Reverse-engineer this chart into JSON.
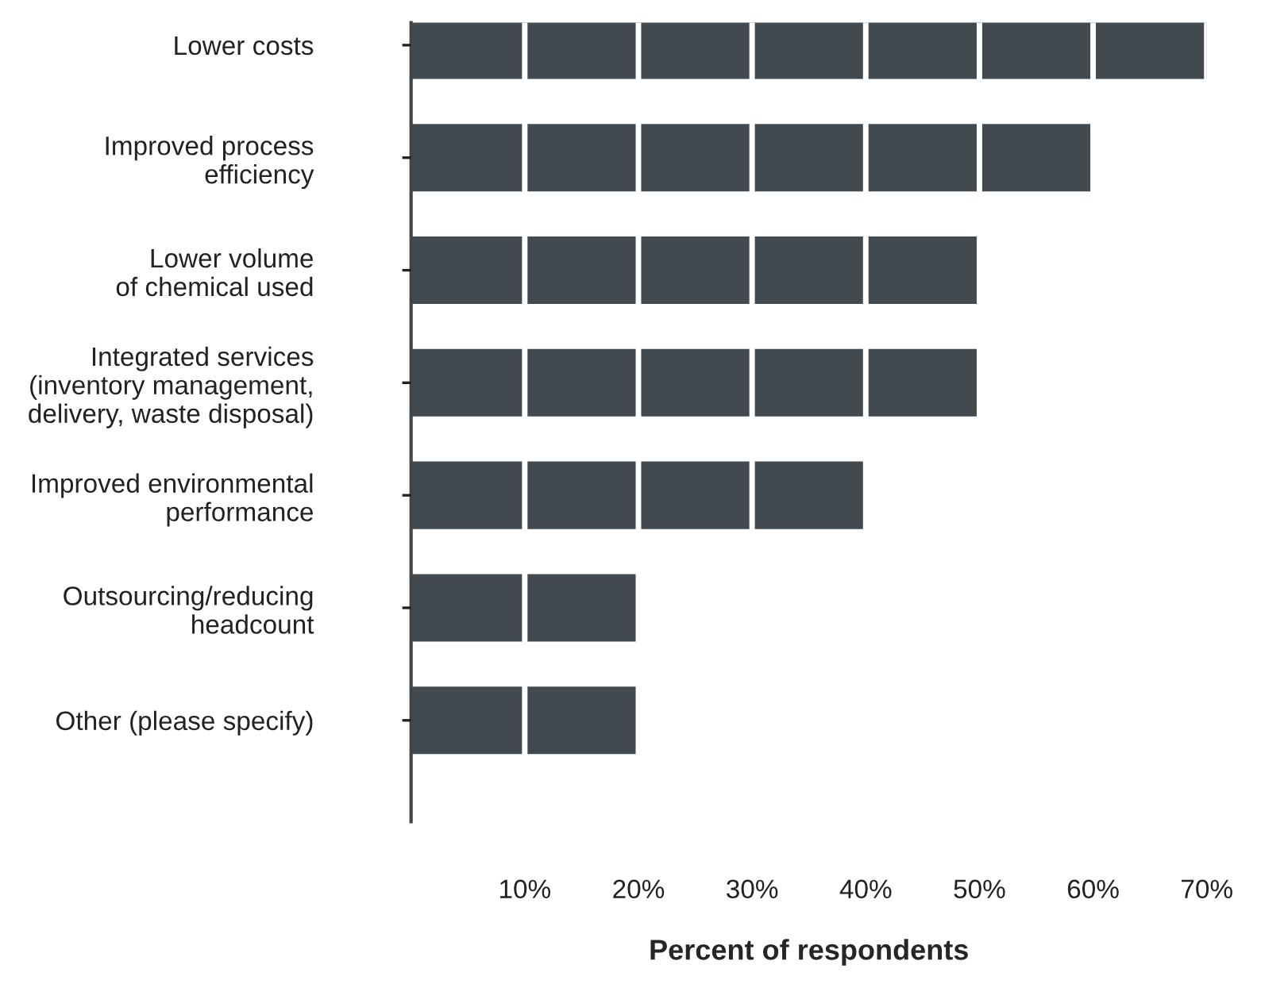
{
  "chart_data": {
    "type": "bar",
    "orientation": "horizontal",
    "xlabel": "Percent of respondents",
    "categories": [
      "Lower costs",
      "Improved process\nefficiency",
      "Lower volume\nof chemical used",
      "Integrated services\n(inventory management,\ndelivery, waste disposal)",
      "Improved environmental\nperformance",
      "Outsourcing/reducing\nheadcount",
      "Other (please specify)"
    ],
    "values": [
      70,
      60,
      50,
      50,
      40,
      20,
      20
    ],
    "color": "#434a4f",
    "xlim": [
      0,
      70
    ],
    "xticks": [
      {
        "value": 10,
        "label": "10%"
      },
      {
        "value": 20,
        "label": "20%"
      },
      {
        "value": 30,
        "label": "30%"
      },
      {
        "value": 40,
        "label": "40%"
      },
      {
        "value": 50,
        "label": "50%"
      },
      {
        "value": 60,
        "label": "60%"
      },
      {
        "value": 70,
        "label": "70%"
      }
    ],
    "grid": "x",
    "legend": false
  }
}
